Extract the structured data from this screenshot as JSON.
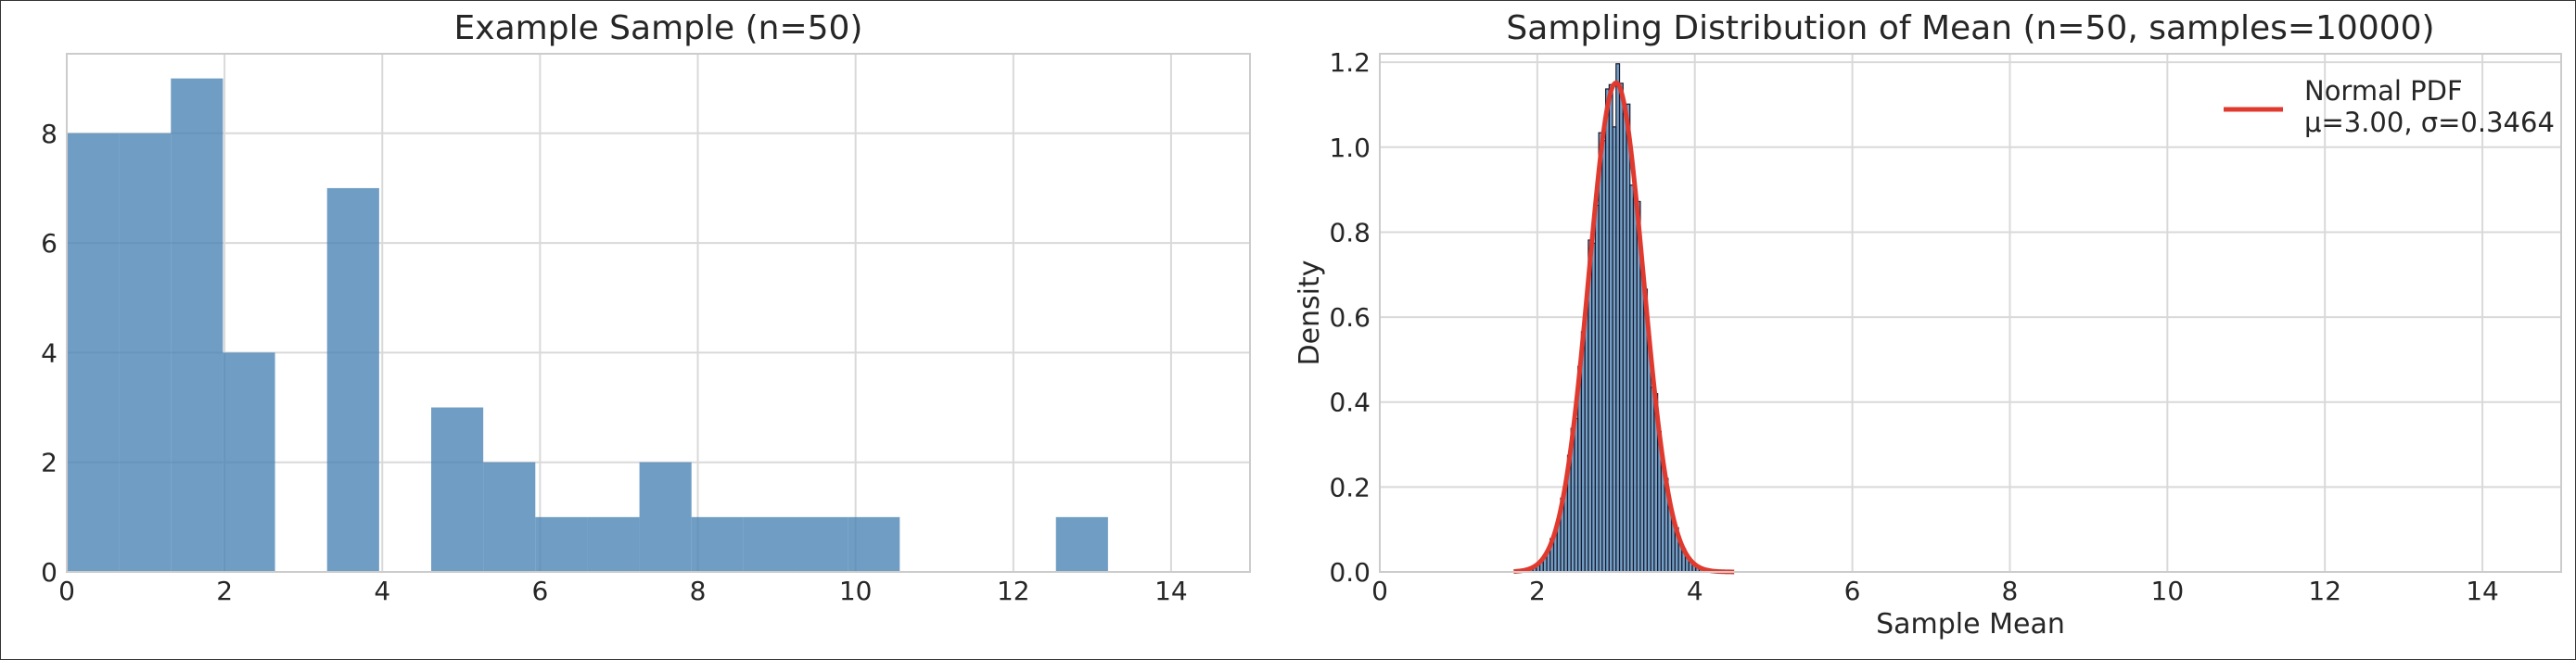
{
  "chart_data": [
    {
      "type": "bar",
      "title": "Example Sample (n=50)",
      "xlabel": "",
      "ylabel": "",
      "xlim": [
        0,
        15
      ],
      "ylim": [
        0,
        9.45
      ],
      "xticks": [
        "0",
        "2",
        "4",
        "6",
        "8",
        "10",
        "12",
        "14"
      ],
      "yticks": [
        "0",
        "2",
        "4",
        "6",
        "8"
      ],
      "grid": true,
      "color": "#4682b4",
      "bin_width": 0.66,
      "bins": [
        {
          "x0": 0.0,
          "count": 8
        },
        {
          "x0": 0.66,
          "count": 8
        },
        {
          "x0": 1.32,
          "count": 9
        },
        {
          "x0": 1.98,
          "count": 4
        },
        {
          "x0": 2.64,
          "count": 0
        },
        {
          "x0": 3.3,
          "count": 7
        },
        {
          "x0": 3.96,
          "count": 0
        },
        {
          "x0": 4.62,
          "count": 3
        },
        {
          "x0": 5.28,
          "count": 2
        },
        {
          "x0": 5.94,
          "count": 1
        },
        {
          "x0": 6.6,
          "count": 1
        },
        {
          "x0": 7.26,
          "count": 2
        },
        {
          "x0": 7.92,
          "count": 1
        },
        {
          "x0": 8.58,
          "count": 1
        },
        {
          "x0": 9.24,
          "count": 1
        },
        {
          "x0": 9.9,
          "count": 1
        },
        {
          "x0": 10.56,
          "count": 0
        },
        {
          "x0": 11.22,
          "count": 0
        },
        {
          "x0": 11.88,
          "count": 0
        },
        {
          "x0": 12.54,
          "count": 1
        }
      ]
    },
    {
      "type": "histogram",
      "title": "Sampling Distribution of Mean (n=50, samples=10000)",
      "xlabel": "Sample Mean",
      "ylabel": "Density",
      "xlim": [
        0,
        15
      ],
      "ylim": [
        0,
        1.22
      ],
      "xticks": [
        "0",
        "2",
        "4",
        "6",
        "8",
        "10",
        "12",
        "14"
      ],
      "yticks": [
        "0.0",
        "0.2",
        "0.4",
        "0.6",
        "0.8",
        "1.0",
        "1.2"
      ],
      "grid": true,
      "hist_color": "#4682b4",
      "hist_edge": "#1a1a2e",
      "hist_range": [
        1.9,
        4.1
      ],
      "hist_bins": 50,
      "mean": 3.0,
      "sigma": 0.3464,
      "pdf_range": [
        1.7,
        4.5
      ],
      "legend": {
        "placement": "top-right",
        "line_color": "#e03a2f",
        "label_line1": "Normal PDF",
        "label_line2": "μ=3.00, σ=0.3464"
      }
    }
  ]
}
